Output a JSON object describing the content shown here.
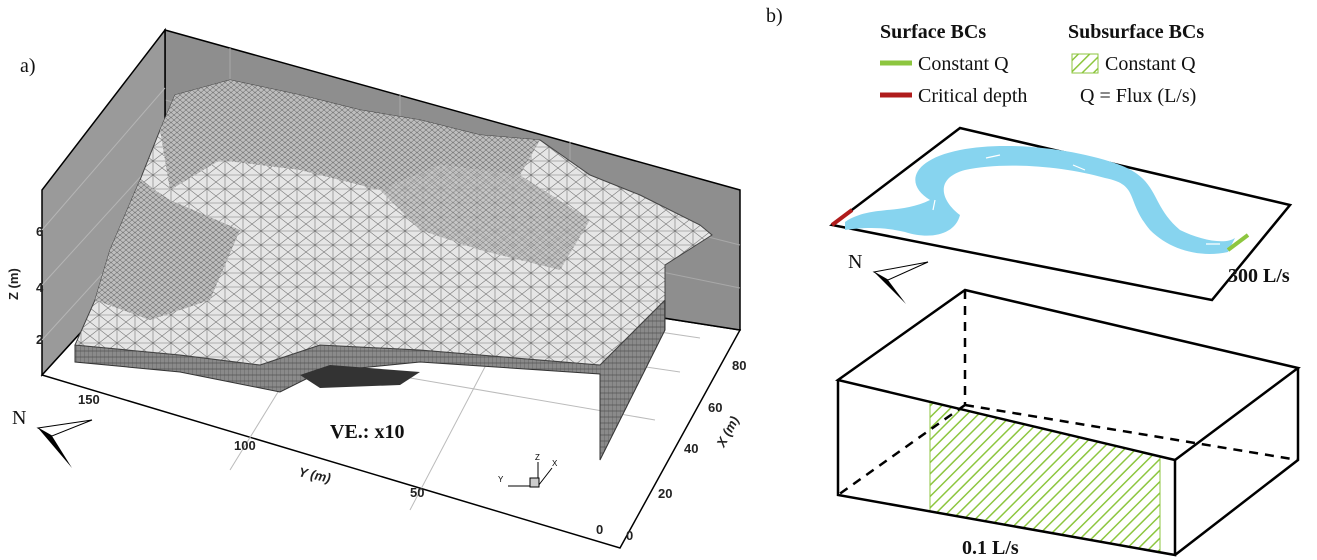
{
  "panel_a": {
    "label": "a)",
    "z_axis": {
      "title": "Z (m)",
      "ticks": [
        6,
        4,
        2
      ]
    },
    "y_axis": {
      "title": "Y (m)",
      "ticks": [
        150,
        100,
        50,
        0
      ]
    },
    "x_axis": {
      "title": "X (m)",
      "ticks": [
        0,
        20,
        40,
        60,
        80
      ]
    },
    "triad": [
      "Y",
      "Z",
      "X"
    ],
    "annotation": "VE.: x10",
    "north": "N"
  },
  "panel_b": {
    "label": "b)",
    "legend": {
      "surface_title": "Surface BCs",
      "subsurface_title": "Subsurface BCs",
      "surface_items": [
        "Constant Q",
        "Critical depth"
      ],
      "subsurface_items": [
        "Constant Q",
        "Q = Flux (L/s)"
      ]
    },
    "north": "N",
    "surface_flux": "300 L/s",
    "subsurface_flux": "0.1 L/s"
  }
}
